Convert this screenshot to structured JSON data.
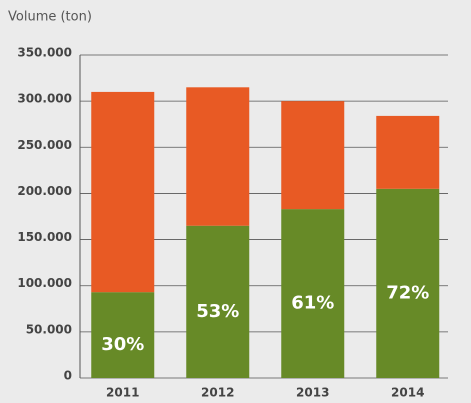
{
  "chart_data": {
    "type": "stacked_bar",
    "ylabel": "Volume (ton)",
    "categories": [
      "2011",
      "2012",
      "2013",
      "2014"
    ],
    "series": [
      {
        "color": "#678a27",
        "values": [
          93000,
          165000,
          183000,
          205000
        ],
        "data_labels": [
          "30%",
          "53%",
          "61%",
          "72%"
        ]
      },
      {
        "color": "#e85a24",
        "values": [
          217000,
          150000,
          117000,
          79000
        ]
      }
    ],
    "ylim": [
      0,
      350000
    ],
    "yticks": [
      0,
      {
        "value": 50000,
        "label": "50.000"
      },
      {
        "value": 100000,
        "label": "100.000"
      },
      {
        "value": 150000,
        "label": "150.000"
      },
      {
        "value": 200000,
        "label": "200.000"
      },
      {
        "value": 250000,
        "label": "250.000"
      },
      {
        "value": 300000,
        "label": "300.000"
      },
      {
        "value": 350000,
        "label": "350.000"
      }
    ],
    "grid": true
  }
}
